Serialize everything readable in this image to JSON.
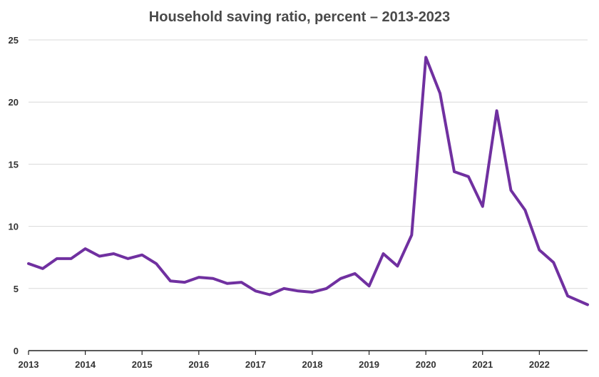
{
  "chart_data": {
    "type": "line",
    "title": "Household saving ratio, percent –  2013-2023",
    "xlabel": "",
    "ylabel": "",
    "ylim": [
      0,
      25
    ],
    "yticks": [
      0,
      5,
      10,
      15,
      20,
      25
    ],
    "xlim": [
      2013,
      2022.85
    ],
    "xticks": [
      "2013",
      "2014",
      "2015",
      "2016",
      "2017",
      "2018",
      "2019",
      "2020",
      "2021",
      "2022"
    ],
    "grid": "horizontal",
    "legend": "none",
    "line_color": "#7030a0",
    "series": [
      {
        "x": [
          2013.0,
          2013.25,
          2013.5,
          2013.75,
          2014.0,
          2014.25,
          2014.5,
          2014.75,
          2015.0,
          2015.25,
          2015.5,
          2015.75,
          2016.0,
          2016.25,
          2016.5,
          2016.75,
          2017.0,
          2017.25,
          2017.5,
          2017.75,
          2018.0,
          2018.25,
          2018.5,
          2018.75,
          2019.0,
          2019.25,
          2019.5,
          2019.75,
          2020.0,
          2020.25,
          2020.5,
          2020.75,
          2021.0,
          2021.25,
          2021.5,
          2021.75,
          2022.0,
          2022.25,
          2022.5,
          2022.85
        ],
        "values": [
          7.0,
          6.6,
          7.4,
          7.4,
          8.2,
          7.6,
          7.8,
          7.4,
          7.7,
          7.0,
          5.6,
          5.5,
          5.9,
          5.8,
          5.4,
          5.5,
          4.8,
          4.5,
          5.0,
          4.8,
          4.7,
          5.0,
          5.8,
          6.2,
          5.2,
          7.8,
          6.8,
          9.3,
          23.6,
          20.7,
          14.4,
          14.0,
          11.6,
          19.3,
          12.9,
          11.3,
          8.1,
          7.1,
          4.4,
          3.7
        ]
      }
    ]
  }
}
